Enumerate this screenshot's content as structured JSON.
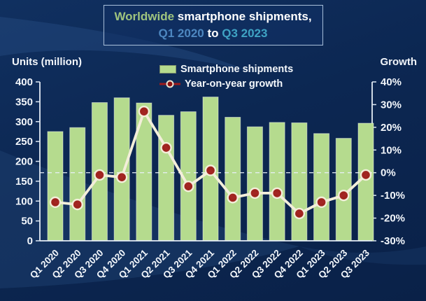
{
  "header": {
    "line1": [
      {
        "text": "Worldwide ",
        "color": "#9fc47e"
      },
      {
        "text": "smartphone shipments,",
        "color": "#ffffff"
      }
    ],
    "line2": [
      {
        "text": "Q1 2020",
        "color": "#4d87c0"
      },
      {
        "text": " to ",
        "color": "#ffffff"
      },
      {
        "text": "Q3 2023",
        "color": "#3fa3c4"
      }
    ]
  },
  "chart_data": {
    "type": "bar",
    "title": "Worldwide smartphone shipments, Q1 2020 to Q3 2023",
    "categories": [
      "Q1 2020",
      "Q2 2020",
      "Q3 2020",
      "Q4 2020",
      "Q1 2021",
      "Q2 2021",
      "Q3 2021",
      "Q4 2021",
      "Q1 2022",
      "Q2 2022",
      "Q3 2022",
      "Q4 2022",
      "Q1 2023",
      "Q2 2023",
      "Q3 2023"
    ],
    "series": [
      {
        "name": "Smartphone shipments",
        "type": "bar",
        "axis": "left",
        "color": "#b5db8e",
        "values": [
          275,
          285,
          348,
          360,
          347,
          316,
          325,
          362,
          311,
          287,
          298,
          297,
          270,
          258,
          296
        ]
      },
      {
        "name": "Year-on-year growth",
        "type": "line",
        "axis": "right",
        "unit": "%",
        "marker_color": "#9c1414",
        "line_color": "#f3eeda",
        "values": [
          -13,
          -14,
          -1,
          -2,
          27,
          11,
          -6,
          1,
          -11,
          -9,
          -9,
          -18,
          -13,
          -10,
          -1
        ]
      }
    ],
    "left_axis": {
      "title": "Units (million)",
      "min": 0,
      "max": 400,
      "step": 50
    },
    "right_axis": {
      "title": "Growth",
      "min": -30,
      "max": 40,
      "step": 10,
      "format": "percent"
    },
    "zero_line": true,
    "grid": false,
    "legend_position": "top",
    "x_tick_rotation": 45
  }
}
